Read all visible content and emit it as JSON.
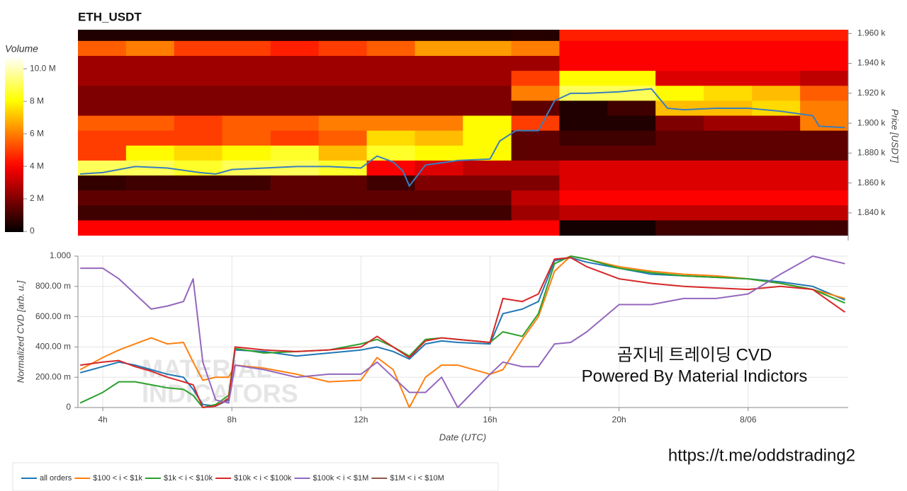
{
  "chart_data": [
    {
      "type": "heatmap",
      "title": "ETH_USDT",
      "y_label": "Price [USDT]",
      "xlim": [
        3.23,
        27.1
      ],
      "x_bins": [
        3.23,
        4.72,
        6.21,
        7.7,
        9.2,
        10.69,
        12.18,
        13.67,
        15.16,
        16.66,
        18.15,
        19.64,
        21.13,
        22.62,
        24.12,
        25.61,
        27.1
      ],
      "price_levels": [
        1960,
        1950,
        1940,
        1930,
        1920,
        1910,
        1900,
        1890,
        1880,
        1870,
        1860,
        1850,
        1840,
        1830
      ],
      "ylim": [
        1821.5,
        1962.5
      ],
      "yticks": [
        {
          "value": 1960,
          "label": "1.960 k"
        },
        {
          "value": 1940,
          "label": "1.940 k"
        },
        {
          "value": 1920,
          "label": "1.920 k"
        },
        {
          "value": 1900,
          "label": "1.900 k"
        },
        {
          "value": 1880,
          "label": "1.880 k"
        },
        {
          "value": 1860,
          "label": "1.860 k"
        },
        {
          "value": 1840,
          "label": "1.840 k"
        }
      ],
      "values": [
        [
          0.5,
          0.5,
          0.5,
          0.5,
          0.5,
          0.5,
          0.5,
          0.5,
          0.5,
          0.6,
          4.5,
          4.5,
          4.5,
          4.5,
          4.5,
          4.5
        ],
        [
          5.5,
          6,
          5,
          5,
          4.5,
          5,
          5.5,
          6.5,
          6.5,
          6,
          4,
          4,
          4,
          4,
          4,
          4
        ],
        [
          2.5,
          2.5,
          2.5,
          2.5,
          2.5,
          2.5,
          2.5,
          2.5,
          2.5,
          2.5,
          4,
          4,
          4,
          4,
          4,
          4
        ],
        [
          2.5,
          2.5,
          2.5,
          2.5,
          2.5,
          2.5,
          2.5,
          2.5,
          2.5,
          5,
          8,
          8,
          3.5,
          3.5,
          3.5,
          3
        ],
        [
          2,
          2,
          2,
          2,
          2,
          2,
          2,
          2,
          2,
          6,
          9,
          9,
          8,
          7.5,
          7,
          5.5
        ],
        [
          2,
          2,
          2,
          2,
          2,
          2,
          2,
          2,
          2,
          1.5,
          0.5,
          1,
          7,
          7,
          7.5,
          6
        ],
        [
          5.5,
          5.5,
          5,
          5.5,
          5.5,
          6,
          6,
          6,
          8,
          5,
          0.5,
          0.5,
          2,
          2.5,
          2.5,
          6
        ],
        [
          5,
          5,
          5,
          5.5,
          5,
          5.5,
          7.5,
          7,
          8,
          1.5,
          1,
          1,
          1.5,
          1.5,
          1.5,
          1.5
        ],
        [
          5,
          8,
          7.5,
          8,
          8.5,
          7,
          8.5,
          8,
          8,
          1.5,
          1.5,
          1.5,
          1.5,
          1.5,
          1.5,
          1.5
        ],
        [
          9,
          9,
          8.5,
          9,
          9,
          8.5,
          4,
          3.5,
          3,
          3,
          3.5,
          3.5,
          3.5,
          3.5,
          3.5,
          3.5
        ],
        [
          0.8,
          1,
          1,
          1,
          1.5,
          1.5,
          1,
          2,
          2,
          2,
          3.5,
          3.5,
          3.5,
          3.5,
          3.5,
          3.5
        ],
        [
          1.5,
          1.5,
          1.5,
          1.5,
          1.5,
          1.5,
          1.5,
          1.5,
          1.5,
          3,
          4,
          4,
          4,
          4,
          4,
          4
        ],
        [
          1,
          1,
          1,
          1,
          1,
          1,
          1,
          1,
          1,
          2.5,
          3,
          3,
          3,
          3,
          3,
          3
        ],
        [
          4,
          4,
          4,
          4,
          4,
          4,
          4,
          4,
          4,
          4,
          0.3,
          0.3,
          1,
          1,
          1,
          1
        ]
      ],
      "colorbar": {
        "label": "Volume",
        "clim": [
          0,
          10.75
        ],
        "ticks": [
          0,
          {
            "value": 2,
            "label": "2 M"
          },
          {
            "value": 4,
            "label": "4 M"
          },
          {
            "value": 6,
            "label": "6 M"
          },
          {
            "value": 8,
            "label": "8 M"
          },
          {
            "value": 10,
            "label": "10.0 M"
          }
        ]
      },
      "price_line": {
        "color": "#3a7ebf",
        "x": [
          3.3,
          4,
          5,
          6,
          7,
          7.5,
          8,
          9,
          10,
          11,
          12,
          12.5,
          13,
          13.3,
          13.5,
          14,
          15,
          16,
          16.3,
          16.8,
          17.5,
          18,
          18.5,
          19,
          20,
          21,
          21.5,
          22,
          23,
          24,
          25,
          26,
          26.2,
          27
        ],
        "values": [
          1866,
          1867,
          1871,
          1870,
          1867,
          1866,
          1869,
          1870,
          1871,
          1871,
          1870,
          1878,
          1874,
          1868,
          1858,
          1872,
          1875,
          1876,
          1888,
          1895,
          1895,
          1915,
          1920,
          1920,
          1921,
          1923,
          1910,
          1909,
          1910,
          1910,
          1908,
          1905,
          1898,
          1897
        ]
      }
    },
    {
      "type": "line",
      "x_label": "Date (UTC)",
      "y_label": "Normalized CVD [arb. u.]",
      "grid": true,
      "legend": "bottom-left",
      "xlim": [
        3.23,
        27.1
      ],
      "ylim": [
        0,
        1
      ],
      "xticks": [
        {
          "value": 4,
          "label": "4h"
        },
        {
          "value": 8,
          "label": "8h"
        },
        {
          "value": 12,
          "label": "12h"
        },
        {
          "value": 16,
          "label": "16h"
        },
        {
          "value": 20,
          "label": "20h"
        },
        {
          "value": 24,
          "label": "8/06"
        }
      ],
      "yticks": [
        0,
        {
          "value": 0.2,
          "label": "200.00 m"
        },
        {
          "value": 0.4,
          "label": "400.00 m"
        },
        {
          "value": 0.6,
          "label": "600.00 m"
        },
        {
          "value": 0.8,
          "label": "800.00 m"
        },
        {
          "value": 1,
          "label": "1.000"
        }
      ],
      "x": [
        3.3,
        4,
        4.5,
        5,
        5.5,
        6,
        6.5,
        6.8,
        7.1,
        7.5,
        7.9,
        8.1,
        9,
        10,
        11,
        12,
        12.5,
        13,
        13.5,
        14,
        14.5,
        15,
        16,
        16.4,
        17,
        17.5,
        18,
        18.5,
        19,
        20,
        21,
        22,
        23,
        24,
        25,
        26,
        27
      ],
      "series": [
        {
          "name": "all orders",
          "color": "#1f77b4",
          "values": [
            0.23,
            0.27,
            0.3,
            0.28,
            0.25,
            0.22,
            0.2,
            0.12,
            0.02,
            0.01,
            0.05,
            0.38,
            0.37,
            0.34,
            0.36,
            0.38,
            0.4,
            0.37,
            0.32,
            0.42,
            0.44,
            0.43,
            0.42,
            0.62,
            0.65,
            0.7,
            0.97,
            0.99,
            0.96,
            0.92,
            0.88,
            0.87,
            0.86,
            0.85,
            0.83,
            0.8,
            0.71
          ]
        },
        {
          "name": "$100 < i < $1k",
          "color": "#ff7f0e",
          "values": [
            0.25,
            0.33,
            0.38,
            0.42,
            0.46,
            0.42,
            0.43,
            0.3,
            0.18,
            0.2,
            0.2,
            0.28,
            0.26,
            0.22,
            0.17,
            0.18,
            0.33,
            0.25,
            0.0,
            0.2,
            0.28,
            0.28,
            0.22,
            0.25,
            0.45,
            0.6,
            0.9,
            1.0,
            0.98,
            0.93,
            0.9,
            0.88,
            0.87,
            0.85,
            0.82,
            0.78,
            0.72
          ]
        },
        {
          "name": "$1k < i < $10k",
          "color": "#2ca02c",
          "values": [
            0.03,
            0.1,
            0.17,
            0.17,
            0.15,
            0.13,
            0.12,
            0.08,
            0.0,
            0.02,
            0.08,
            0.39,
            0.36,
            0.37,
            0.38,
            0.42,
            0.45,
            0.4,
            0.34,
            0.45,
            0.46,
            0.45,
            0.43,
            0.5,
            0.47,
            0.62,
            0.95,
            1.0,
            0.98,
            0.92,
            0.89,
            0.87,
            0.86,
            0.85,
            0.82,
            0.78,
            0.69
          ]
        },
        {
          "name": "$10k < i < $100k",
          "color": "#d62728",
          "values": [
            0.28,
            0.3,
            0.31,
            0.27,
            0.24,
            0.2,
            0.17,
            0.15,
            0.0,
            0.01,
            0.06,
            0.4,
            0.38,
            0.37,
            0.38,
            0.4,
            0.47,
            0.4,
            0.33,
            0.44,
            0.46,
            0.45,
            0.43,
            0.72,
            0.7,
            0.75,
            0.98,
            0.99,
            0.93,
            0.85,
            0.82,
            0.8,
            0.79,
            0.78,
            0.8,
            0.78,
            0.63
          ]
        },
        {
          "name": "$100k < i < $1M",
          "color": "#9467bd",
          "values": [
            0.92,
            0.92,
            0.85,
            0.75,
            0.65,
            0.67,
            0.7,
            0.85,
            0.3,
            0.05,
            0.03,
            0.28,
            0.25,
            0.2,
            0.22,
            0.22,
            0.3,
            0.2,
            0.1,
            0.1,
            0.2,
            0.0,
            0.22,
            0.3,
            0.27,
            0.27,
            0.42,
            0.43,
            0.5,
            0.68,
            0.68,
            0.72,
            0.72,
            0.75,
            0.88,
            1.0,
            0.95
          ]
        },
        {
          "name": "$1M < i < $10M",
          "color": "#8c564b",
          "values": [
            null,
            null,
            null,
            null,
            null,
            null,
            null,
            null,
            null,
            null,
            null,
            null,
            null,
            null,
            null,
            null,
            null,
            null,
            null,
            null,
            null,
            null,
            null,
            null,
            null,
            null,
            null,
            null,
            null,
            null,
            null,
            null,
            null,
            null,
            null,
            null,
            null
          ]
        }
      ],
      "watermark": [
        "MATERIAL",
        "INDICATORS"
      ],
      "annotations": [
        "곰지네 트레이딩 CVD",
        "Powered By Material Indictors"
      ]
    }
  ],
  "footer_link": "https://t.me/oddstrading2"
}
